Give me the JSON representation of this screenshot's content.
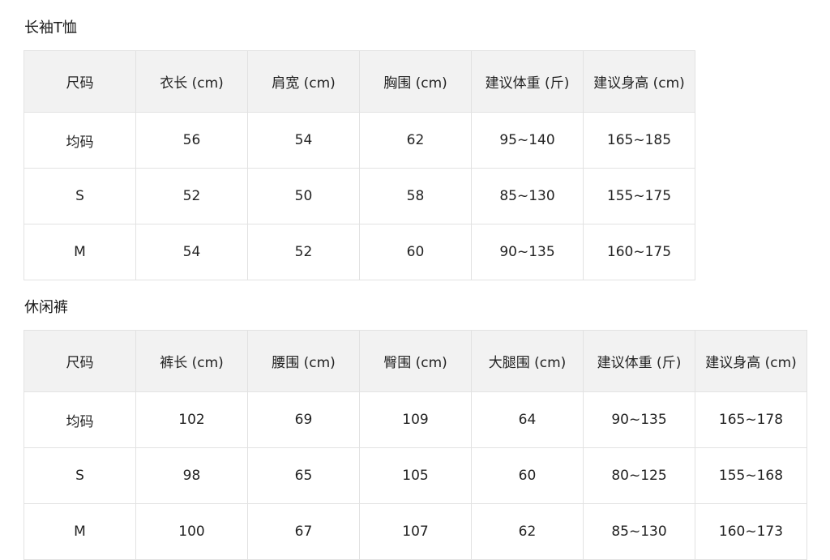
{
  "tables": [
    {
      "title": "长袖T恤",
      "headers": [
        "尺码",
        "衣长 (cm)",
        "肩宽 (cm)",
        "胸围 (cm)",
        "建议体重 (斤)",
        "建议身高 (cm)"
      ],
      "rows": [
        [
          "均码",
          "56",
          "54",
          "62",
          "95~140",
          "165~185"
        ],
        [
          "S",
          "52",
          "50",
          "58",
          "85~130",
          "155~175"
        ],
        [
          "M",
          "54",
          "52",
          "60",
          "90~135",
          "160~175"
        ]
      ]
    },
    {
      "title": "休闲裤",
      "headers": [
        "尺码",
        "裤长 (cm)",
        "腰围 (cm)",
        "臀围 (cm)",
        "大腿围 (cm)",
        "建议体重 (斤)",
        "建议身高 (cm)"
      ],
      "rows": [
        [
          "均码",
          "102",
          "69",
          "109",
          "64",
          "90~135",
          "165~178"
        ],
        [
          "S",
          "98",
          "65",
          "105",
          "60",
          "80~125",
          "155~168"
        ],
        [
          "M",
          "100",
          "67",
          "107",
          "62",
          "85~130",
          "160~173"
        ]
      ]
    }
  ]
}
